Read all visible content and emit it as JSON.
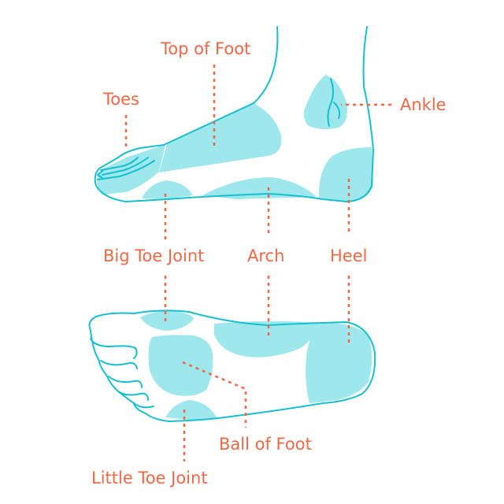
{
  "labels": {
    "top_of_foot": "Top of Foot",
    "toes": "Toes",
    "ankle": "Ankle",
    "big_toe_joint": "Big Toe Joint",
    "arch": "Arch",
    "heel": "Heel",
    "ball_of_foot": "Ball of Foot",
    "little_toe_joint": "Little Toe Joint"
  },
  "colors": {
    "label": "#f26746",
    "outline": "#16c0cf",
    "zone": "#9ee7ec",
    "background": "#ffffff"
  }
}
